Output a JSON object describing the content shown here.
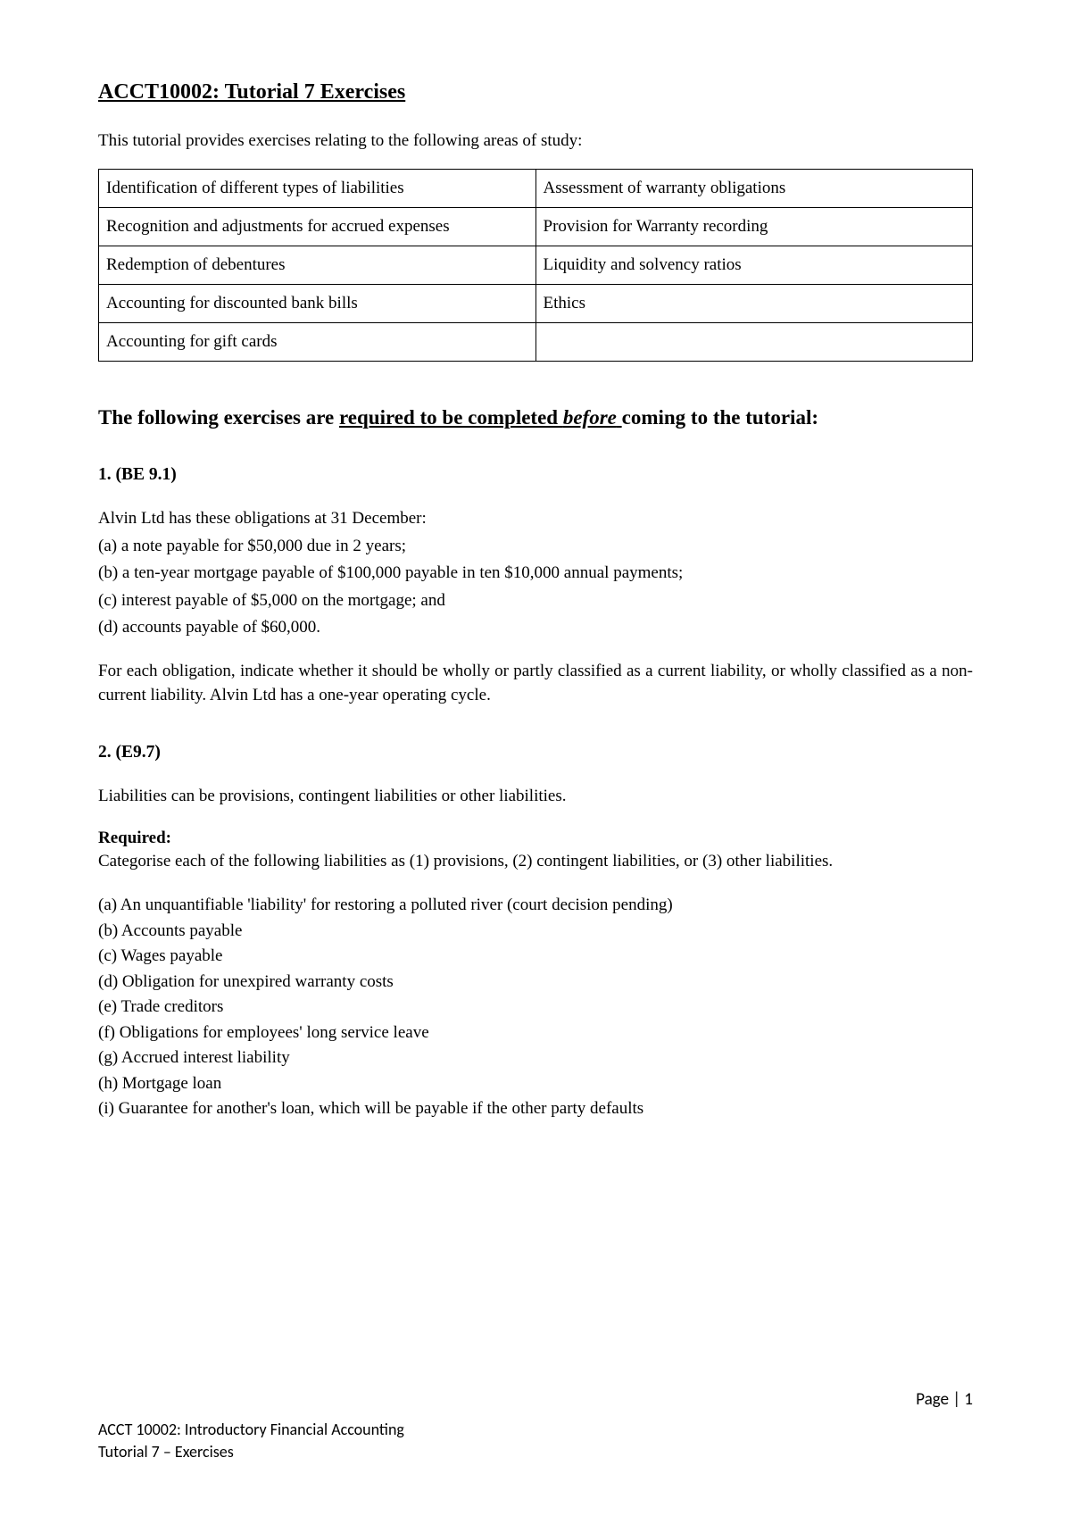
{
  "title": "ACCT10002:  Tutorial 7 Exercises",
  "intro": "This tutorial provides exercises relating to the following areas of study:",
  "areas_table": {
    "rows": [
      [
        "Identification of different types of liabilities",
        "Assessment of warranty obligations"
      ],
      [
        "Recognition and adjustments for accrued expenses",
        "Provision for Warranty recording"
      ],
      [
        "Redemption of debentures",
        "Liquidity and solvency ratios"
      ],
      [
        "Accounting for discounted bank bills",
        "Ethics"
      ],
      [
        "Accounting for gift cards",
        ""
      ]
    ]
  },
  "section_heading": {
    "part1": "The following exercises are ",
    "underlined_part1": "required to be completed ",
    "italic_underlined": "before",
    "underlined_part2": " ",
    "part2": "coming to the tutorial:"
  },
  "exercise1": {
    "number": "1. (BE 9.1)",
    "intro": "Alvin Ltd has these obligations at 31 December:",
    "items": [
      "(a) a note payable for $50,000 due in 2 years;",
      "(b) a ten-year mortgage payable of $100,000 payable in ten $10,000 annual payments;",
      "(c) interest payable of $5,000 on the mortgage; and",
      "(d) accounts payable of $60,000."
    ],
    "question": "For each obligation, indicate whether it should be wholly or partly classified as a current liability, or wholly classified as a non-current liability.  Alvin Ltd has a one-year operating cycle."
  },
  "exercise2": {
    "number": "2.  (E9.7)",
    "intro": "Liabilities can be provisions, contingent liabilities or other liabilities.",
    "required_label": "Required:",
    "required_text": "Categorise each of the following liabilities as (1) provisions, (2) contingent liabilities, or (3) other liabilities.",
    "items": [
      "(a) An unquantifiable 'liability' for restoring a polluted river (court decision pending)",
      "(b) Accounts payable",
      "(c) Wages payable",
      "(d) Obligation for unexpired warranty costs",
      "(e) Trade creditors",
      "(f) Obligations for employees' long service leave",
      "(g) Accrued interest liability",
      "(h) Mortgage loan",
      "(i) Guarantee for another's loan, which will be payable if the other party defaults"
    ]
  },
  "footer": {
    "page_number": "Page | 1",
    "line1": "ACCT 10002: Introductory Financial Accounting",
    "line2": "Tutorial 7 – Exercises"
  }
}
